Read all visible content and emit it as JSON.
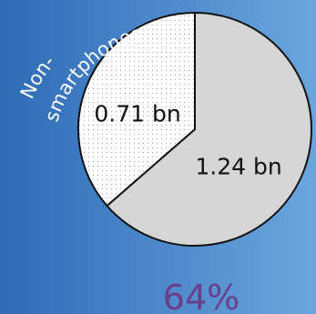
{
  "chart_data": {
    "type": "pie",
    "slices": [
      {
        "label": "1.24 bn",
        "value": 1.24,
        "color": "#d7d6d6"
      },
      {
        "label": "0.71 bn",
        "value": 0.71,
        "color": "#ffffff",
        "pattern": "dotted"
      }
    ],
    "slice_annotation": [
      "Non-",
      "smartphones"
    ],
    "percent_label": "64%"
  },
  "colors": {
    "background_start": "#2f6bb6",
    "background_end": "#6aa6de",
    "outline": "#111111",
    "percent_text": "#6a3e8a"
  }
}
